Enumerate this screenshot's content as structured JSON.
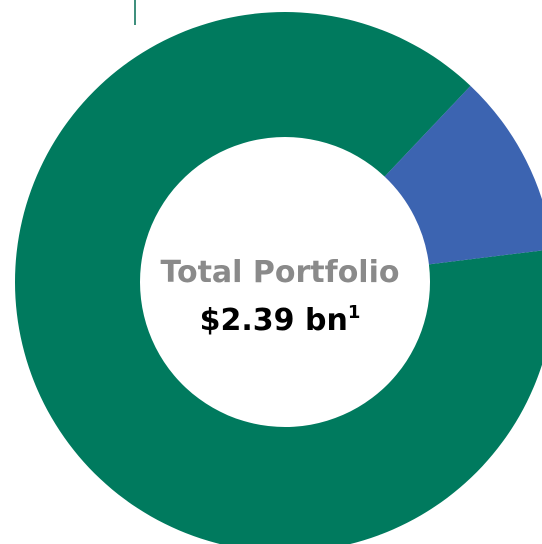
{
  "chart_data": {
    "type": "donut",
    "title": "Total Portfolio",
    "total": "$2.39 bn",
    "footnote": "1",
    "categories": [
      null,
      null
    ],
    "values": [
      89,
      11
    ],
    "colors": [
      "#007a5e",
      "#3c64b1"
    ]
  }
}
